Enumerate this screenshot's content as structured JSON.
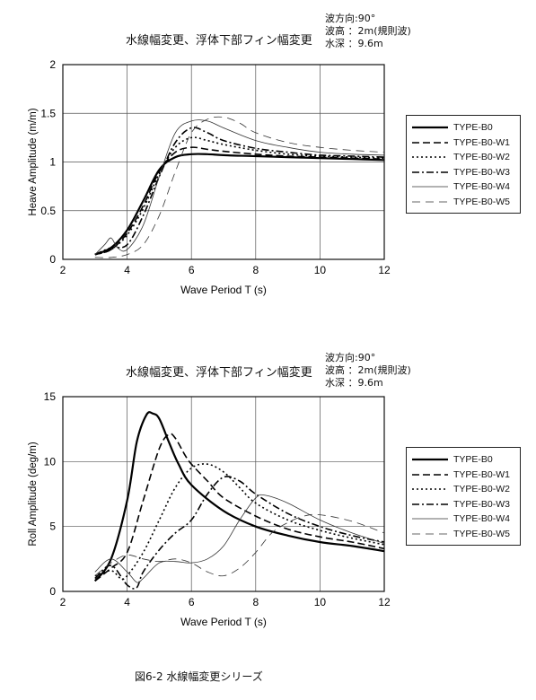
{
  "caption": "図6-2 水線幅変更シリーズ",
  "series_styles": [
    {
      "name": "TYPE-B0",
      "color": "#000000",
      "width": 2.2,
      "dash": ""
    },
    {
      "name": "TYPE-B0-W1",
      "color": "#000000",
      "width": 1.6,
      "dash": "8,4"
    },
    {
      "name": "TYPE-B0-W2",
      "color": "#000000",
      "width": 1.6,
      "dash": "2,3"
    },
    {
      "name": "TYPE-B0-W3",
      "color": "#000000",
      "width": 1.6,
      "dash": "8,3,2,3"
    },
    {
      "name": "TYPE-B0-W4",
      "color": "#333333",
      "width": 0.8,
      "dash": ""
    },
    {
      "name": "TYPE-B0-W5",
      "color": "#333333",
      "width": 0.8,
      "dash": "9,6"
    }
  ],
  "chart_data": [
    {
      "type": "line",
      "title": "水線幅変更、浮体下部フィン幅変更",
      "conditions": [
        "波方向:90°",
        "波高 ：2m(規則波)",
        "水深 ：9.6m"
      ],
      "xlabel": "Wave Period  T (s)",
      "ylabel": "Heave Amplitude (m/m)",
      "xlim": [
        2,
        12
      ],
      "ylim": [
        0,
        2
      ],
      "xticks": [
        "2",
        "4",
        "6",
        "8",
        "10",
        "12"
      ],
      "yticks": [
        "0",
        "0.5",
        "1",
        "1.5",
        "2"
      ],
      "grid": true,
      "legend_position": "right",
      "series": [
        {
          "name": "TYPE-B0",
          "x": [
            3,
            3.5,
            4,
            4.5,
            5,
            5.5,
            6,
            6.5,
            7,
            8,
            9,
            10,
            11,
            12
          ],
          "y": [
            0.05,
            0.12,
            0.3,
            0.6,
            0.92,
            1.05,
            1.08,
            1.08,
            1.07,
            1.06,
            1.05,
            1.04,
            1.03,
            1.02
          ]
        },
        {
          "name": "TYPE-B0-W1",
          "x": [
            3,
            3.5,
            4,
            4.5,
            5,
            5.5,
            6,
            6.5,
            7,
            8,
            9,
            10,
            11,
            12
          ],
          "y": [
            0.05,
            0.1,
            0.27,
            0.55,
            0.9,
            1.1,
            1.15,
            1.13,
            1.11,
            1.08,
            1.06,
            1.05,
            1.04,
            1.03
          ]
        },
        {
          "name": "TYPE-B0-W2",
          "x": [
            3,
            3.5,
            4,
            4.5,
            5,
            5.5,
            6,
            6.5,
            7,
            8,
            9,
            10,
            11,
            12
          ],
          "y": [
            0.05,
            0.1,
            0.25,
            0.52,
            0.88,
            1.15,
            1.25,
            1.22,
            1.18,
            1.12,
            1.08,
            1.06,
            1.05,
            1.04
          ]
        },
        {
          "name": "TYPE-B0-W3",
          "x": [
            3,
            3.5,
            4,
            4.5,
            5,
            5.5,
            6,
            6.5,
            7,
            8,
            9,
            10,
            11,
            12
          ],
          "y": [
            0.05,
            0.12,
            0.15,
            0.45,
            0.85,
            1.2,
            1.35,
            1.3,
            1.22,
            1.14,
            1.1,
            1.07,
            1.06,
            1.05
          ]
        },
        {
          "name": "TYPE-B0-W4",
          "x": [
            3,
            3.3,
            3.5,
            3.7,
            4,
            4.5,
            5,
            5.5,
            6,
            6.5,
            7,
            8,
            9,
            10,
            11,
            12
          ],
          "y": [
            0.05,
            0.15,
            0.22,
            0.12,
            0.1,
            0.35,
            0.85,
            1.3,
            1.42,
            1.42,
            1.35,
            1.22,
            1.15,
            1.1,
            1.08,
            1.07
          ]
        },
        {
          "name": "TYPE-B0-W5",
          "x": [
            3,
            3.5,
            4,
            4.5,
            5,
            5.5,
            6,
            6.5,
            7,
            7.5,
            8,
            9,
            10,
            11,
            12
          ],
          "y": [
            0.02,
            0.02,
            0.05,
            0.15,
            0.45,
            0.9,
            1.3,
            1.44,
            1.46,
            1.4,
            1.3,
            1.2,
            1.15,
            1.12,
            1.1
          ]
        }
      ]
    },
    {
      "type": "line",
      "title": "水線幅変更、浮体下部フィン幅変更",
      "conditions": [
        "波方向:90°",
        "波高 ：2m(規則波)",
        "水深 ：9.6m"
      ],
      "xlabel": "Wave Period  T (s)",
      "ylabel": "Roll Amplitude (deg/m)",
      "xlim": [
        2,
        12
      ],
      "ylim": [
        0,
        15
      ],
      "xticks": [
        "2",
        "4",
        "6",
        "8",
        "10",
        "12"
      ],
      "yticks": [
        "0",
        "5",
        "10",
        "15"
      ],
      "grid": true,
      "legend_position": "right",
      "series": [
        {
          "name": "TYPE-B0",
          "x": [
            3,
            3.5,
            4,
            4.3,
            4.6,
            4.8,
            5,
            5.3,
            5.6,
            6,
            7,
            8,
            9,
            10,
            11,
            12
          ],
          "y": [
            0.8,
            2.5,
            7,
            11.5,
            13.6,
            13.7,
            13.3,
            11.5,
            9.8,
            8.2,
            6.2,
            5,
            4.3,
            3.8,
            3.5,
            3.1
          ]
        },
        {
          "name": "TYPE-B0-W1",
          "x": [
            3,
            3.5,
            4,
            4.5,
            5,
            5.3,
            5.5,
            5.8,
            6,
            6.5,
            7,
            8,
            9,
            10,
            11,
            12
          ],
          "y": [
            0.8,
            1.8,
            3,
            7,
            11,
            12.1,
            11.8,
            10.5,
            9.8,
            8.5,
            7.2,
            5.8,
            4.8,
            4.2,
            3.8,
            3.3
          ]
        },
        {
          "name": "TYPE-B0-W2",
          "x": [
            3,
            3.5,
            3.8,
            4,
            4.5,
            5,
            5.5,
            6,
            6.5,
            7,
            7.5,
            8,
            9,
            10,
            11,
            12
          ],
          "y": [
            1.2,
            1.6,
            1,
            1.2,
            3,
            5.5,
            8,
            9.5,
            9.8,
            9.2,
            8,
            6.8,
            5.5,
            4.7,
            4.1,
            3.6
          ]
        },
        {
          "name": "TYPE-B0-W3",
          "x": [
            3,
            3.5,
            4,
            4.3,
            4.5,
            5,
            5.5,
            6,
            6.5,
            7,
            7.5,
            8,
            9,
            10,
            11,
            12
          ],
          "y": [
            1,
            2,
            0.5,
            0.3,
            1.5,
            3.2,
            4.5,
            5.5,
            7.5,
            8.8,
            8.5,
            7.5,
            6,
            5,
            4.3,
            3.8
          ]
        },
        {
          "name": "TYPE-B0-W4",
          "x": [
            3,
            3.5,
            4,
            4.3,
            4.5,
            5,
            5.5,
            6,
            6.5,
            7,
            7.5,
            8,
            8.3,
            9,
            10,
            11,
            12
          ],
          "y": [
            1.5,
            2.5,
            1.5,
            0.7,
            1,
            2.2,
            2.3,
            2.2,
            2.5,
            3.5,
            5.5,
            7.2,
            7.4,
            6.8,
            5.5,
            4.5,
            3.7
          ]
        },
        {
          "name": "TYPE-B0-W5",
          "x": [
            3,
            3.5,
            4,
            4.5,
            5,
            5.5,
            6,
            6.5,
            7,
            7.5,
            8,
            8.5,
            9,
            9.5,
            10,
            11,
            12
          ],
          "y": [
            1.2,
            2.2,
            2.8,
            2.5,
            2.3,
            2.5,
            2.2,
            1.5,
            1.2,
            1.8,
            3,
            4.5,
            5.3,
            5.8,
            5.9,
            5.4,
            4.5
          ]
        }
      ]
    }
  ]
}
